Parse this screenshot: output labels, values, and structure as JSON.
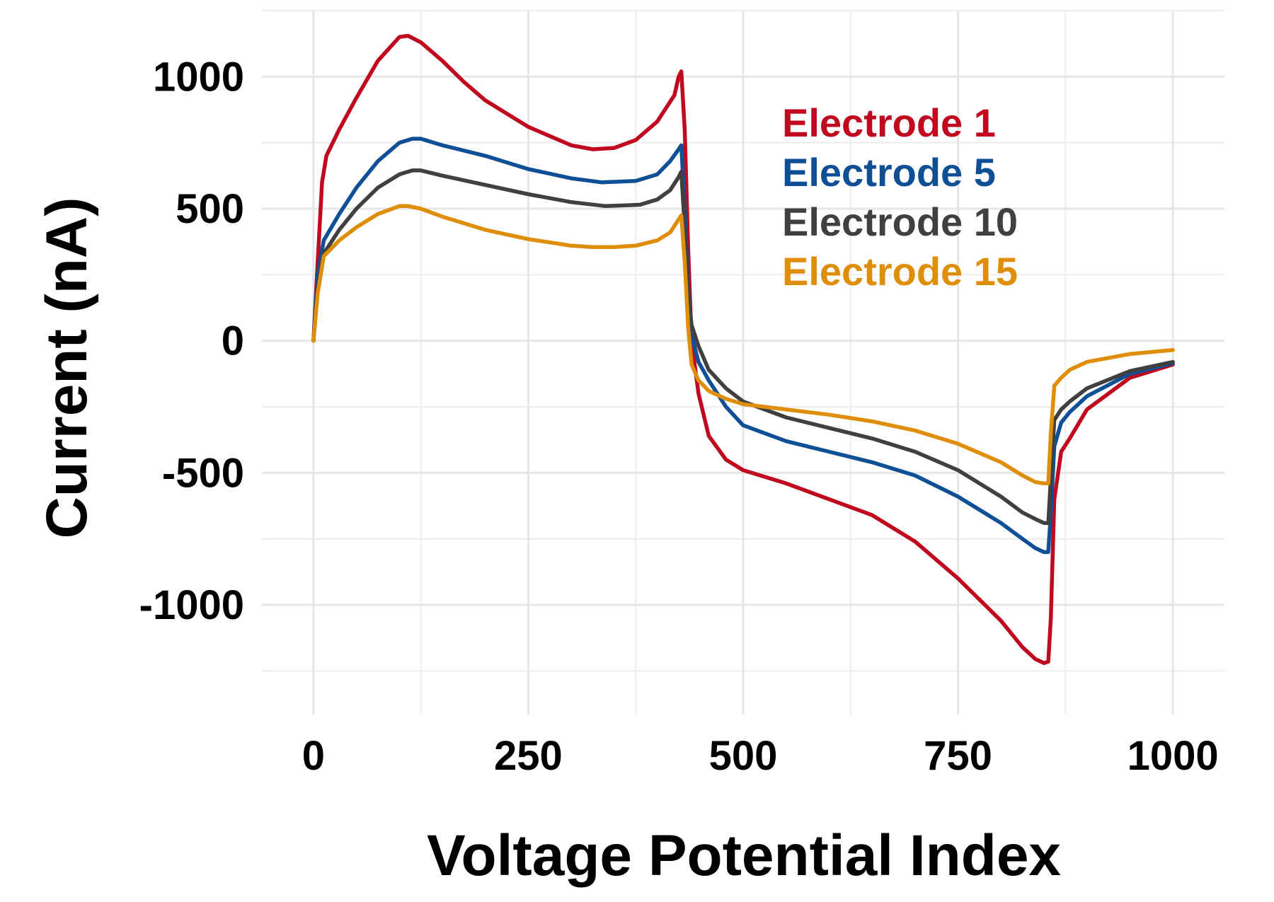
{
  "chart_data": {
    "type": "line",
    "xlabel": "Voltage Potential Index",
    "ylabel": "Current (nA)",
    "xlim": [
      -60,
      1060
    ],
    "ylim": [
      -1415,
      1250
    ],
    "x_ticks": [
      0,
      250,
      500,
      750,
      1000
    ],
    "x_tick_labels": [
      "0",
      "250",
      "500",
      "750",
      "1000"
    ],
    "x_minor_ticks": [
      125,
      375,
      625,
      875
    ],
    "y_ticks": [
      -1000,
      -500,
      0,
      500,
      1000
    ],
    "y_tick_labels": [
      "-1000",
      "-500",
      "0",
      "500",
      "1000"
    ],
    "y_minor_ticks": [
      -1250,
      -750,
      -250,
      250,
      750,
      1250
    ],
    "grid": true,
    "legend_placement": "top-right",
    "series": [
      {
        "name": "Electrode 1",
        "color": "#c0081f",
        "points": [
          [
            0,
            0
          ],
          [
            5,
            300
          ],
          [
            10,
            600
          ],
          [
            15,
            700
          ],
          [
            30,
            800
          ],
          [
            50,
            920
          ],
          [
            75,
            1060
          ],
          [
            100,
            1150
          ],
          [
            110,
            1155
          ],
          [
            125,
            1130
          ],
          [
            150,
            1060
          ],
          [
            175,
            980
          ],
          [
            200,
            910
          ],
          [
            250,
            810
          ],
          [
            300,
            740
          ],
          [
            325,
            725
          ],
          [
            350,
            730
          ],
          [
            375,
            760
          ],
          [
            400,
            830
          ],
          [
            420,
            930
          ],
          [
            425,
            1000
          ],
          [
            428,
            1020
          ],
          [
            432,
            800
          ],
          [
            436,
            350
          ],
          [
            440,
            0
          ],
          [
            448,
            -200
          ],
          [
            460,
            -360
          ],
          [
            480,
            -450
          ],
          [
            500,
            -490
          ],
          [
            550,
            -540
          ],
          [
            600,
            -600
          ],
          [
            650,
            -660
          ],
          [
            700,
            -760
          ],
          [
            750,
            -900
          ],
          [
            800,
            -1060
          ],
          [
            825,
            -1160
          ],
          [
            840,
            -1205
          ],
          [
            850,
            -1220
          ],
          [
            855,
            -1215
          ],
          [
            858,
            -1050
          ],
          [
            862,
            -600
          ],
          [
            870,
            -420
          ],
          [
            880,
            -370
          ],
          [
            900,
            -260
          ],
          [
            950,
            -140
          ],
          [
            1000,
            -90
          ]
        ]
      },
      {
        "name": "Electrode 5",
        "color": "#0e4f96",
        "points": [
          [
            0,
            0
          ],
          [
            5,
            250
          ],
          [
            12,
            380
          ],
          [
            30,
            480
          ],
          [
            50,
            580
          ],
          [
            75,
            680
          ],
          [
            100,
            750
          ],
          [
            115,
            765
          ],
          [
            125,
            765
          ],
          [
            150,
            740
          ],
          [
            200,
            700
          ],
          [
            250,
            650
          ],
          [
            300,
            615
          ],
          [
            335,
            600
          ],
          [
            375,
            605
          ],
          [
            400,
            630
          ],
          [
            415,
            680
          ],
          [
            425,
            725
          ],
          [
            428,
            740
          ],
          [
            432,
            500
          ],
          [
            436,
            200
          ],
          [
            440,
            20
          ],
          [
            448,
            -80
          ],
          [
            460,
            -150
          ],
          [
            480,
            -250
          ],
          [
            500,
            -320
          ],
          [
            550,
            -380
          ],
          [
            600,
            -420
          ],
          [
            650,
            -460
          ],
          [
            700,
            -510
          ],
          [
            750,
            -590
          ],
          [
            800,
            -690
          ],
          [
            825,
            -750
          ],
          [
            840,
            -785
          ],
          [
            850,
            -800
          ],
          [
            855,
            -800
          ],
          [
            858,
            -650
          ],
          [
            862,
            -400
          ],
          [
            870,
            -310
          ],
          [
            880,
            -270
          ],
          [
            900,
            -210
          ],
          [
            950,
            -125
          ],
          [
            1000,
            -85
          ]
        ]
      },
      {
        "name": "Electrode 10",
        "color": "#404040",
        "points": [
          [
            0,
            0
          ],
          [
            5,
            200
          ],
          [
            12,
            330
          ],
          [
            30,
            420
          ],
          [
            50,
            500
          ],
          [
            75,
            580
          ],
          [
            100,
            630
          ],
          [
            115,
            645
          ],
          [
            125,
            645
          ],
          [
            150,
            625
          ],
          [
            200,
            590
          ],
          [
            250,
            555
          ],
          [
            300,
            525
          ],
          [
            340,
            510
          ],
          [
            380,
            515
          ],
          [
            400,
            535
          ],
          [
            415,
            570
          ],
          [
            425,
            620
          ],
          [
            428,
            640
          ],
          [
            432,
            430
          ],
          [
            436,
            180
          ],
          [
            440,
            60
          ],
          [
            448,
            -20
          ],
          [
            460,
            -110
          ],
          [
            480,
            -180
          ],
          [
            500,
            -230
          ],
          [
            550,
            -290
          ],
          [
            600,
            -330
          ],
          [
            650,
            -370
          ],
          [
            700,
            -420
          ],
          [
            750,
            -490
          ],
          [
            800,
            -590
          ],
          [
            825,
            -650
          ],
          [
            840,
            -675
          ],
          [
            850,
            -690
          ],
          [
            855,
            -690
          ],
          [
            858,
            -520
          ],
          [
            862,
            -300
          ],
          [
            870,
            -260
          ],
          [
            880,
            -230
          ],
          [
            900,
            -180
          ],
          [
            950,
            -115
          ],
          [
            1000,
            -80
          ]
        ]
      },
      {
        "name": "Electrode 15",
        "color": "#df8e0a",
        "points": [
          [
            0,
            0
          ],
          [
            5,
            180
          ],
          [
            12,
            320
          ],
          [
            30,
            380
          ],
          [
            50,
            430
          ],
          [
            75,
            480
          ],
          [
            100,
            510
          ],
          [
            110,
            510
          ],
          [
            125,
            500
          ],
          [
            150,
            470
          ],
          [
            200,
            420
          ],
          [
            250,
            385
          ],
          [
            300,
            360
          ],
          [
            325,
            355
          ],
          [
            350,
            355
          ],
          [
            375,
            360
          ],
          [
            400,
            380
          ],
          [
            415,
            410
          ],
          [
            425,
            460
          ],
          [
            428,
            475
          ],
          [
            432,
            300
          ],
          [
            436,
            50
          ],
          [
            440,
            -90
          ],
          [
            448,
            -150
          ],
          [
            460,
            -190
          ],
          [
            480,
            -220
          ],
          [
            500,
            -240
          ],
          [
            550,
            -260
          ],
          [
            600,
            -280
          ],
          [
            650,
            -305
          ],
          [
            700,
            -340
          ],
          [
            750,
            -390
          ],
          [
            800,
            -460
          ],
          [
            825,
            -510
          ],
          [
            840,
            -535
          ],
          [
            850,
            -540
          ],
          [
            855,
            -540
          ],
          [
            858,
            -350
          ],
          [
            862,
            -170
          ],
          [
            870,
            -140
          ],
          [
            880,
            -110
          ],
          [
            900,
            -80
          ],
          [
            950,
            -50
          ],
          [
            1000,
            -35
          ]
        ]
      }
    ]
  }
}
